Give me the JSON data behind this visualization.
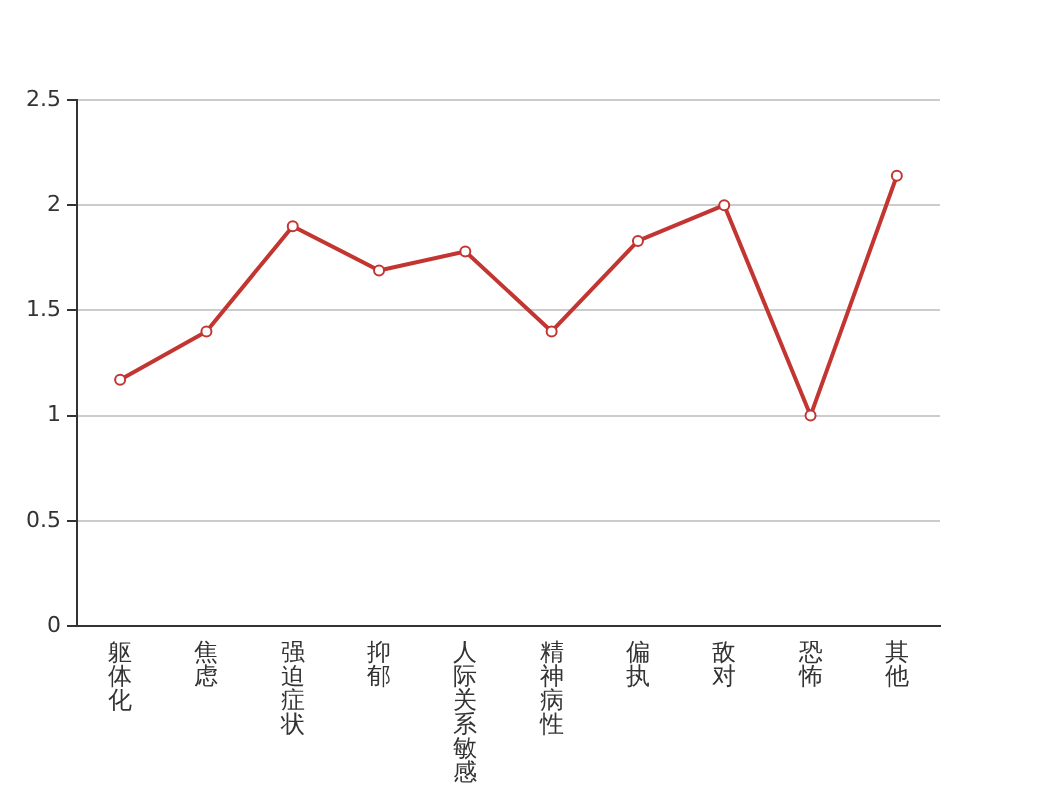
{
  "chart_data": {
    "type": "line",
    "categories": [
      "躯体化",
      "焦虑",
      "强迫症状",
      "抑郁",
      "人际关系敏感",
      "精神病性",
      "偏执",
      "敌对",
      "恐怖",
      "其他"
    ],
    "series": [
      {
        "color": "#c23531",
        "values": [
          1.17,
          1.4,
          1.9,
          1.69,
          1.78,
          1.4,
          1.83,
          2.0,
          1.0,
          2.14
        ]
      }
    ],
    "ylim": [
      0,
      2.5
    ],
    "yticks": [
      0,
      0.5,
      1,
      1.5,
      2,
      2.5
    ],
    "grid": "y",
    "legend": false,
    "marker": "circle",
    "line_style": "solid"
  }
}
